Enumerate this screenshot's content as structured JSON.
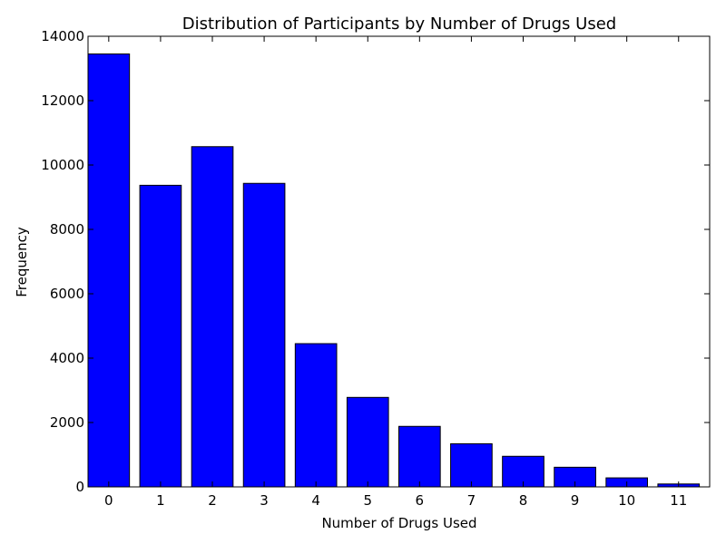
{
  "chart_data": {
    "type": "bar",
    "title": "Distribution of Participants by Number of Drugs Used",
    "xlabel": "Number of Drugs Used",
    "ylabel": "Frequency",
    "categories": [
      "0",
      "1",
      "2",
      "3",
      "4",
      "5",
      "6",
      "7",
      "8",
      "9",
      "10",
      "11"
    ],
    "values": [
      13450,
      9370,
      10570,
      9430,
      4450,
      2780,
      1880,
      1340,
      950,
      610,
      280,
      90
    ],
    "ylim": [
      0,
      14000
    ],
    "yticks": [
      "0",
      "2000",
      "4000",
      "6000",
      "8000",
      "10000",
      "12000",
      "14000"
    ],
    "grid": false,
    "bar_color": "#0000ff",
    "edge_color": "#000000"
  }
}
